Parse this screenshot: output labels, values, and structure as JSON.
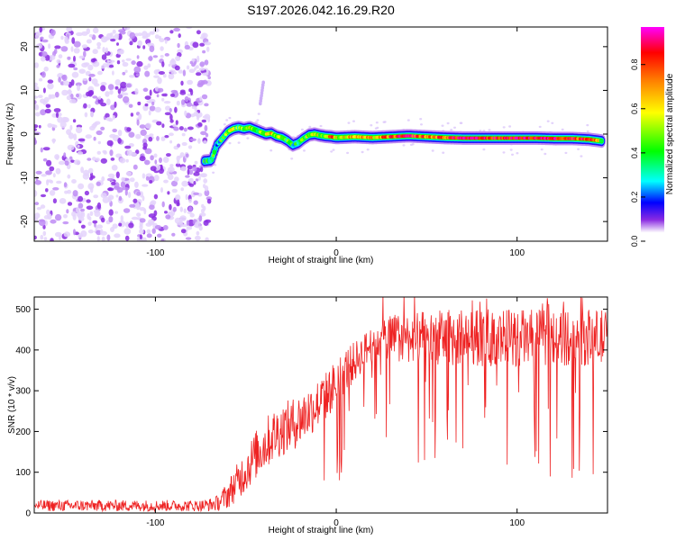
{
  "page": {
    "title": "S197.2026.042.16.29.R20"
  },
  "chart_data": [
    {
      "id": "spectrogram",
      "type": "heatmap",
      "title": "S197.2026.042.16.29.R20",
      "xlabel": "Height of straight line (km)",
      "ylabel": "Frequency (Hz)",
      "xlim": [
        -167,
        150
      ],
      "ylim": [
        -24.5,
        24.5
      ],
      "x_ticks": [
        -100,
        0,
        100
      ],
      "y_ticks": [
        -20,
        -10,
        0,
        10,
        20
      ],
      "colorbar": {
        "label": "Normalized spectral amplitude",
        "range": [
          0,
          0.97
        ],
        "ticks": [
          0,
          0.2,
          0.4,
          0.6,
          0.8
        ],
        "colormap": [
          "#ffffff",
          "#8a2be2",
          "#0000ff",
          "#00ffff",
          "#00ff00",
          "#ffff00",
          "#ff7f00",
          "#ff0000",
          "#ff00ff"
        ]
      },
      "noise_region_x": [
        -167,
        -73
      ],
      "signal_track": {
        "x": [
          -73,
          -69,
          -66,
          -63,
          -60,
          -57,
          -54,
          -51,
          -48,
          -45,
          -42,
          -39,
          -36,
          -33,
          -30,
          -27,
          -24,
          -21,
          -18,
          -15,
          -12,
          -9,
          -6,
          -3,
          0,
          10,
          20,
          30,
          40,
          50,
          60,
          70,
          80,
          90,
          100,
          110,
          120,
          130,
          140,
          147
        ],
        "y": [
          -6.2,
          -6.0,
          -2.5,
          -1.0,
          0.5,
          1.2,
          1.5,
          1.2,
          1.5,
          1.0,
          0.5,
          0.0,
          0.2,
          -0.5,
          -0.8,
          -1.5,
          -2.5,
          -2.0,
          -1.0,
          -0.2,
          0.0,
          -0.3,
          -0.5,
          -0.6,
          -0.8,
          -0.6,
          -0.8,
          -0.6,
          -0.4,
          -0.6,
          -0.8,
          -0.9,
          -0.9,
          -0.9,
          -0.9,
          -0.9,
          -1.0,
          -1.0,
          -1.2,
          -1.6
        ],
        "amplitude": [
          0.4,
          0.45,
          0.35,
          0.45,
          0.5,
          0.55,
          0.45,
          0.5,
          0.6,
          0.5,
          0.45,
          0.55,
          0.7,
          0.5,
          0.6,
          0.45,
          0.4,
          0.45,
          0.5,
          0.55,
          0.6,
          0.55,
          0.5,
          0.85,
          0.6,
          0.7,
          0.65,
          0.8,
          0.9,
          0.75,
          0.8,
          0.95,
          0.9,
          0.85,
          0.95,
          0.9,
          0.95,
          0.85,
          0.9,
          0.5
        ]
      },
      "outlier_blob": {
        "x": -42,
        "y_range": [
          7,
          12
        ]
      }
    },
    {
      "id": "snr",
      "type": "line",
      "xlabel": "Height of straight line (km)",
      "ylabel": "SNR (10 * v/v)",
      "xlim": [
        -167,
        150
      ],
      "ylim": [
        0,
        530
      ],
      "x_ticks": [
        -100,
        0,
        100
      ],
      "y_ticks": [
        0,
        100,
        200,
        300,
        400,
        500
      ],
      "series": [
        {
          "name": "SNR",
          "color": "#ee2222",
          "x": [
            -167,
            -150,
            -130,
            -110,
            -90,
            -75,
            -70,
            -65,
            -60,
            -55,
            -50,
            -45,
            -40,
            -35,
            -30,
            -25,
            -20,
            -15,
            -10,
            -5,
            0,
            5,
            10,
            15,
            20,
            25,
            30,
            40,
            50,
            60,
            70,
            80,
            90,
            100,
            110,
            120,
            130,
            140,
            150
          ],
          "mean": [
            18,
            18,
            18,
            18,
            18,
            18,
            20,
            25,
            45,
            75,
            105,
            140,
            165,
            190,
            205,
            215,
            230,
            250,
            270,
            290,
            320,
            350,
            370,
            395,
            415,
            425,
            430,
            430,
            430,
            430,
            430,
            430,
            430,
            430,
            430,
            430,
            430,
            430,
            430
          ],
          "spread": [
            14,
            14,
            14,
            14,
            14,
            14,
            16,
            20,
            35,
            45,
            55,
            60,
            65,
            65,
            65,
            65,
            65,
            65,
            60,
            60,
            60,
            55,
            50,
            45,
            45,
            50,
            60,
            60,
            65,
            70,
            70,
            70,
            70,
            70,
            70,
            70,
            70,
            70,
            70
          ]
        }
      ]
    }
  ]
}
